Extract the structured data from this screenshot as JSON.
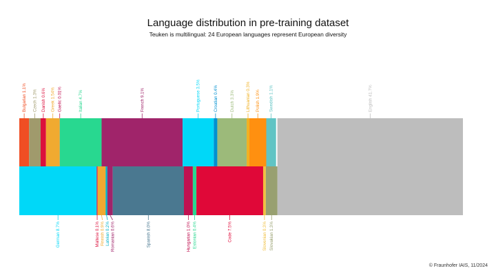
{
  "chart_data": {
    "type": "mosaic",
    "title": "Language distribution in pre-training dataset",
    "subtitle": "Teuken is multilingual: 24 European languages represent European diversity",
    "footer": "© Fraunhofer IAIS, 11/2024",
    "series": [
      {
        "name": "Bulgarian",
        "color": "#f04e23",
        "values": [
          1.1
        ],
        "value_labels": [
          "1.1%"
        ],
        "row": "top"
      },
      {
        "name": "Czech",
        "color": "#a09a6c",
        "values": [
          1.3
        ],
        "value_labels": [
          "1.3%"
        ],
        "row": "top"
      },
      {
        "name": "Danish",
        "color": "#dc0f3c",
        "values": [
          0.6
        ],
        "value_labels": [
          "0.6%"
        ],
        "row": "top"
      },
      {
        "name": "Greek",
        "color": "#f0aa30",
        "values": [
          1.54
        ],
        "value_labels": [
          "1.54%"
        ],
        "row": "top"
      },
      {
        "name": "Gaelic",
        "color": "#c01050",
        "values": [
          0.01
        ],
        "value_labels": [
          "0.01%"
        ],
        "row": "top"
      },
      {
        "name": "Italian",
        "color": "#28d890",
        "values": [
          4.7
        ],
        "value_labels": [
          "4.7%"
        ],
        "row": "top"
      },
      {
        "name": "French",
        "color": "#a0246a",
        "values": [
          9.1
        ],
        "value_labels": [
          "9.1%"
        ],
        "row": "top"
      },
      {
        "name": "Portuguese",
        "color": "#00d8f8",
        "values": [
          3.5
        ],
        "value_labels": [
          "3.5%"
        ],
        "row": "top"
      },
      {
        "name": "Croatian",
        "color": "#0090d0",
        "values": [
          0.4
        ],
        "value_labels": [
          "0.4%"
        ],
        "row": "top"
      },
      {
        "name": "Dutch",
        "color": "#9cba7a",
        "values": [
          3.3
        ],
        "value_labels": [
          "3.3%"
        ],
        "row": "top"
      },
      {
        "name": "Lithuanian",
        "color": "#f0b020",
        "values": [
          0.3
        ],
        "value_labels": [
          "0.3%"
        ],
        "row": "top"
      },
      {
        "name": "Polish",
        "color": "#ff9010",
        "values": [
          1.9
        ],
        "value_labels": [
          "1.9%"
        ],
        "row": "top"
      },
      {
        "name": "Swedish",
        "color": "#60c4c4",
        "values": [
          1.1
        ],
        "value_labels": [
          "1.1%"
        ],
        "row": "top"
      },
      {
        "name": "English",
        "color": "#bdbdbd",
        "values": [
          41.7
        ],
        "value_labels": [
          "41.7%"
        ],
        "row": "both"
      },
      {
        "name": "German",
        "color": "#00d8f8",
        "values": [
          8.7
        ],
        "value_labels": [
          "8.7%"
        ],
        "row": "bottom"
      },
      {
        "name": "Maltese",
        "color": "#dc0f3c",
        "values": [
          0.1
        ],
        "value_labels": [
          "0.1%"
        ],
        "row": "bottom"
      },
      {
        "name": "Finnish",
        "color": "#f0aa30",
        "values": [
          0.9
        ],
        "value_labels": [
          "0.9%"
        ],
        "row": "bottom"
      },
      {
        "name": "Latvian",
        "color": "#00b0c8",
        "values": [
          0.2
        ],
        "value_labels": [
          "0.2%"
        ],
        "row": "bottom"
      },
      {
        "name": "Romanian",
        "color": "#a0246a",
        "values": [
          0.6
        ],
        "value_labels": [
          "0.6%"
        ],
        "row": "bottom"
      },
      {
        "name": "Spanish",
        "color": "#4a7890",
        "values": [
          8.0
        ],
        "value_labels": [
          "8.0%"
        ],
        "row": "bottom"
      },
      {
        "name": "Hungarian",
        "color": "#c01050",
        "values": [
          1.0
        ],
        "value_labels": [
          "1.0%"
        ],
        "row": "bottom"
      },
      {
        "name": "Estonian",
        "color": "#28d890",
        "values": [
          0.4
        ],
        "value_labels": [
          "0.4%"
        ],
        "row": "bottom"
      },
      {
        "name": "Code",
        "color": "#e00838",
        "values": [
          7.5
        ],
        "value_labels": [
          "7.5%"
        ],
        "row": "bottom"
      },
      {
        "name": "Slovenian",
        "color": "#f0c040",
        "values": [
          0.3
        ],
        "value_labels": [
          "0.3%"
        ],
        "row": "bottom"
      },
      {
        "name": "Slovakian",
        "color": "#98a070",
        "values": [
          1.3
        ],
        "value_labels": [
          "1.3%"
        ],
        "row": "bottom"
      }
    ]
  }
}
